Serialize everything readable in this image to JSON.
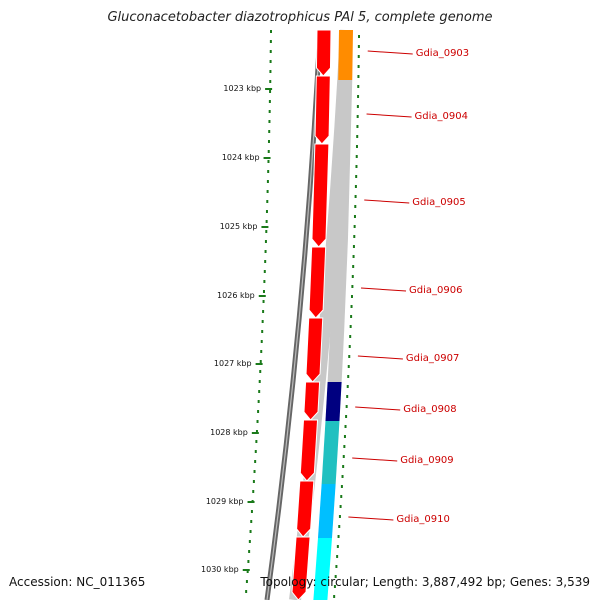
{
  "title": "Gluconacetobacter diazotrophicus PAl 5, complete genome",
  "accession": "Accession: NC_011365",
  "genome_info": "Topology: circular; Length: 3,887,492 bp; Genes: 3,539",
  "scale": {
    "unit": "kbp",
    "ticks": [
      1023,
      1024,
      1025,
      1026,
      1027,
      1028,
      1029,
      1030
    ]
  },
  "genes": [
    {
      "name": "Gdia_0903",
      "color": "#ff8c00"
    },
    {
      "name": "Gdia_0904",
      "color": "#c8c8c8"
    },
    {
      "name": "Gdia_0905",
      "color": "#c8c8c8"
    },
    {
      "name": "Gdia_0906",
      "color": "#c8c8c8"
    },
    {
      "name": "Gdia_0907",
      "color": "#c8c8c8"
    },
    {
      "name": "Gdia_0908",
      "color": "#000080"
    },
    {
      "name": "Gdia_0909",
      "color": "#20c0c0"
    },
    {
      "name": "Gdia_0910",
      "color": "#00bfff"
    }
  ],
  "colors": {
    "strand_arrows": "#ff0000",
    "ticks": "#006400",
    "backbone": "#666666"
  }
}
